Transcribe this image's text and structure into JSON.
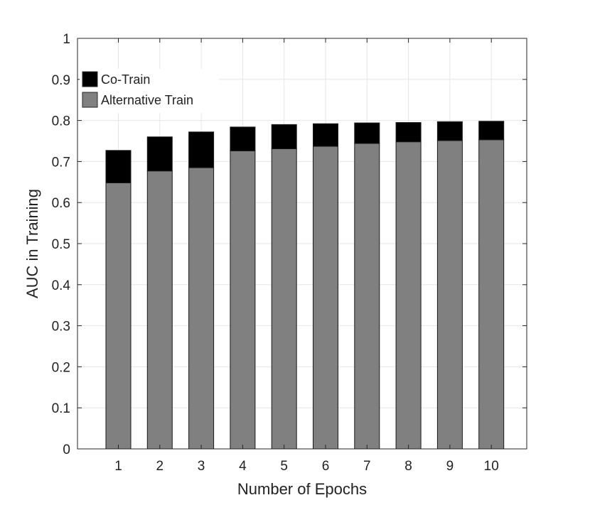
{
  "chart_data": {
    "type": "bar",
    "stacked": true,
    "xlabel": "Number of Epochs",
    "ylabel": "AUC in Training",
    "ylim": [
      0,
      1
    ],
    "yticks": [
      "0",
      "0.1",
      "0.2",
      "0.3",
      "0.4",
      "0.5",
      "0.6",
      "0.7",
      "0.8",
      "0.9",
      "1"
    ],
    "categories": [
      "1",
      "2",
      "3",
      "4",
      "5",
      "6",
      "7",
      "8",
      "9",
      "10"
    ],
    "series": [
      {
        "name": "Alternative Train",
        "color": "#808080",
        "values": [
          0.648,
          0.677,
          0.685,
          0.726,
          0.731,
          0.737,
          0.744,
          0.748,
          0.751,
          0.753
        ]
      },
      {
        "name": "Co-Train",
        "color": "#000000",
        "values": [
          0.079,
          0.083,
          0.087,
          0.058,
          0.059,
          0.055,
          0.05,
          0.047,
          0.046,
          0.045
        ]
      }
    ],
    "grid": true,
    "legend": "top-left"
  }
}
